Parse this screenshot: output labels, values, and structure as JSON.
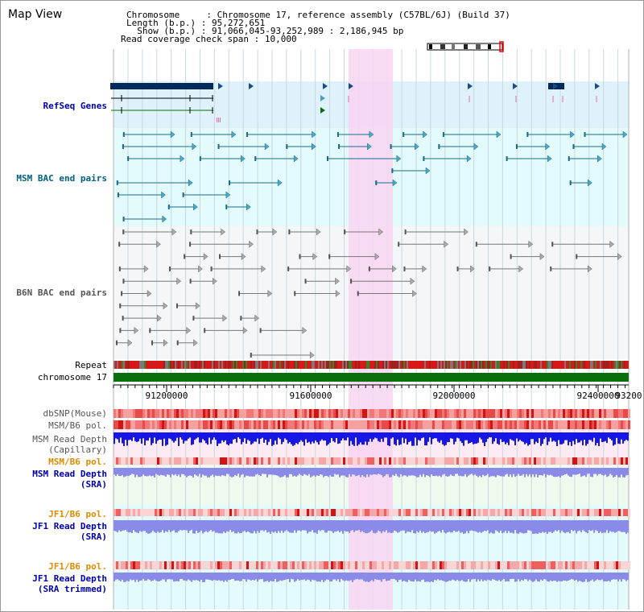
{
  "title": "Map View",
  "info": {
    "chromosome_label": "Chromosome",
    "chromosome_value": "Chromosome 17, reference assembly (C57BL/6J) (Build 37)",
    "length_label": "Length (b.p.)",
    "length_value": "95,272,651",
    "show_label": "Show (b.p.)",
    "show_value": "91,066,045-93,252,989 : 2,186,945 bp",
    "coverage_label": "Read coverage check span",
    "coverage_value": "10,000"
  },
  "tracks": {
    "refseq": "RefSeq Genes",
    "msm_bac": "MSM BAC end pairs",
    "b6n_bac": "B6N BAC end pairs",
    "repeat": "Repeat",
    "chromosome": "chromosome 17",
    "dbsnp": "dbSNP(Mouse)",
    "msm_b6_pol_1": "MSM/B6 pol.",
    "msm_read_depth_cap_1": "MSM Read Depth",
    "msm_read_depth_cap_2": "(Capillary)",
    "msm_b6_pol_2": "MSM/B6 pol.",
    "msm_read_depth_sra_1": "MSM Read Depth",
    "msm_read_depth_sra_2": "(SRA)",
    "jf1_b6_pol_1": "JF1/B6 pol.",
    "jf1_read_depth_sra_1": "JF1 Read Depth",
    "jf1_read_depth_sra_2": "(SRA)",
    "jf1_b6_pol_2": "JF1/B6 pol.",
    "jf1_read_depth_trim_1": "JF1 Read Depth",
    "jf1_read_depth_trim_2": "(SRA trimmed)"
  },
  "axis_ticks": [
    "91200000",
    "91600000",
    "92000000",
    "92400000",
    "92800000",
    "93200"
  ],
  "colors": {
    "refseq_bg": "#dff2fb",
    "msm_bg": "#e4fbfb",
    "highlight": "#f9d5f2",
    "chromosome": "#0a6e0a",
    "refseq_gene": "#002a5c",
    "msm_pair": "#1a6b86",
    "b6n_pair": "#808080",
    "depth_capillary": "#1616e6",
    "depth_sra": "#8a8ae8",
    "pol_red": "#e8342a"
  }
}
